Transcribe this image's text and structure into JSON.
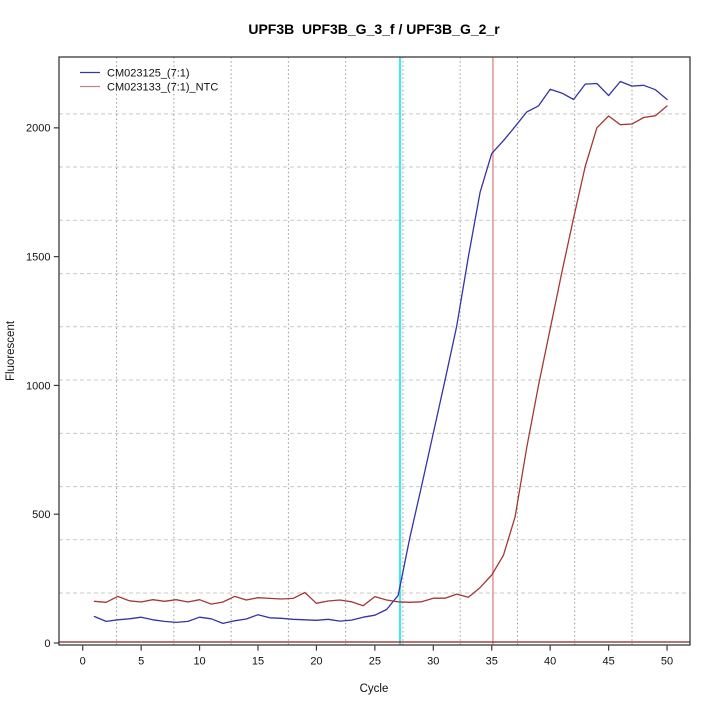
{
  "chart_data": {
    "type": "line",
    "title": "UPF3B  UPF3B_G_3_f / UPF3B_G_2_r",
    "xlabel": "Cycle",
    "ylabel": "Fluorescent",
    "x_ticks": [
      0,
      5,
      10,
      15,
      20,
      25,
      30,
      35,
      40,
      45,
      50
    ],
    "y_ticks": [
      0,
      500,
      1000,
      1500,
      2000
    ],
    "xlim": [
      -2,
      52
    ],
    "ylim": [
      -8,
      2290
    ],
    "grid": {
      "x_grid": [
        2.9,
        7.8,
        12.7,
        17.6,
        22.5,
        27.4,
        32.3,
        37.2,
        42.1,
        47.0
      ],
      "y_grid": [
        194,
        401,
        607,
        814,
        1021,
        1228,
        1434,
        1641,
        1848,
        2054
      ],
      "x_grid_color": "#9a9a9a",
      "y_grid_color": "#c9c9c9"
    },
    "x": [
      1,
      2,
      3,
      4,
      5,
      6,
      7,
      8,
      9,
      10,
      11,
      12,
      13,
      14,
      15,
      16,
      17,
      18,
      19,
      20,
      21,
      22,
      23,
      24,
      25,
      26,
      27,
      28,
      29,
      30,
      31,
      32,
      33,
      34,
      35,
      36,
      37,
      38,
      39,
      40,
      41,
      42,
      43,
      44,
      45,
      46,
      47,
      48,
      49,
      50
    ],
    "series": [
      {
        "name": "CM023125_(7:1)",
        "color": "#3434a4",
        "values": [
          103,
          84,
          90,
          94,
          100,
          90,
          84,
          80,
          84,
          100,
          94,
          76,
          86,
          93,
          110,
          98,
          96,
          92,
          90,
          88,
          92,
          85,
          89,
          100,
          108,
          130,
          185,
          410,
          610,
          815,
          1020,
          1230,
          1500,
          1750,
          1900,
          1950,
          2005,
          2062,
          2085,
          2150,
          2135,
          2110,
          2170,
          2172,
          2125,
          2180,
          2162,
          2165,
          2148,
          2110
        ]
      },
      {
        "name": "CM023133_(7:1)_NTC",
        "color": "#a43836",
        "values": [
          162,
          158,
          181,
          164,
          159,
          168,
          162,
          168,
          159,
          168,
          151,
          159,
          181,
          167,
          176,
          173,
          171,
          173,
          196,
          154,
          163,
          167,
          160,
          145,
          180,
          167,
          160,
          158,
          160,
          174,
          174,
          190,
          178,
          215,
          264,
          340,
          490,
          760,
          1000,
          1220,
          1440,
          1650,
          1850,
          2000,
          2046,
          2012,
          2015,
          2040,
          2047,
          2085
        ]
      }
    ],
    "annotations": {
      "vlines": [
        {
          "x": 27.15,
          "color": "#45e6ee",
          "width": 2.2,
          "name": "ct-line-cyan"
        },
        {
          "x": 35.1,
          "color": "#e39a98",
          "width": 1.6,
          "name": "ct-line-pink"
        }
      ],
      "hlines": [
        {
          "y": 4,
          "color": "#8b2323",
          "width": 1.3,
          "name": "baseline-threshold"
        }
      ]
    },
    "legend": {
      "position": "top-left",
      "entries": [
        {
          "label": "CM023125_(7:1)",
          "color": "#3434a4"
        },
        {
          "label": "CM023133_(7:1)_NTC",
          "color": "#c68486"
        }
      ]
    },
    "axis_color": "#3a3a3a"
  }
}
